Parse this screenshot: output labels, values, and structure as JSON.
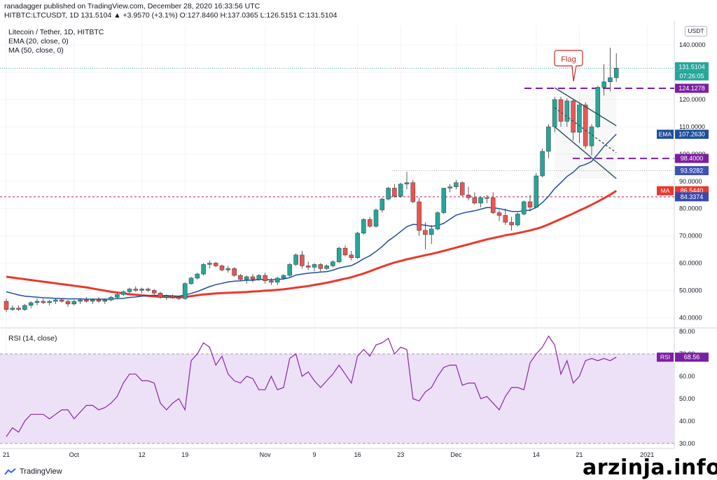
{
  "header": {
    "line1": "ranadagger published on TradingView.com, December 28, 2020 16:33:56 UTC",
    "line2": "HITBTC:LTCUSDT, 1D  131.5104  ▲ +3.9570 (+3.1%) O:127.8460 H:137.0365 L:126.5151 C:131.5104"
  },
  "legend": {
    "symbol": "Litecoin / Tether, 1D, HITBTC",
    "ema": "EMA (20, close, 0)",
    "ma": "MA (50, close, 0)",
    "rsi": "RSI (14, close)"
  },
  "currency_button": "USDT",
  "annotation": {
    "flag_label": "Flag"
  },
  "price_labels": {
    "last": "131.5104",
    "countdown": "07:26:05",
    "level_upper": "124.1278",
    "ema_tag": "EMA",
    "ema_value": "107.2630",
    "level_lower": "98.4000",
    "level_gray": "93.9282",
    "ma_tag": "MA",
    "ma_value": "86.5440",
    "level_red": "84.3374",
    "rsi_tag": "RSI",
    "rsi_value": "68.56"
  },
  "colors": {
    "up": "#26a69a",
    "down": "#ef5350",
    "ema": "#1e4f9c",
    "ma": "#e8392c",
    "dashed": "#7b1fa2",
    "rsi_line": "#8e24aa",
    "rsi_band": "#ede1f7"
  },
  "footer": {
    "brand": "TradingView",
    "watermark": "arzinja.info"
  },
  "chart_data": [
    {
      "type": "candlestick",
      "title": "Litecoin / Tether, 1D, HITBTC",
      "y_axis_ticks": [
        "40.0000",
        "50.0000",
        "60.0000",
        "70.0000",
        "80.0000",
        "90.0000",
        "100.0000",
        "110.0000",
        "120.0000",
        "130.0000",
        "140.0000"
      ],
      "ylim": [
        37,
        147
      ],
      "x_axis_ticks": [
        "21",
        "Oct",
        "12",
        "19",
        "Nov",
        "9",
        "16",
        "23",
        "Dec",
        "14",
        "21",
        "2021"
      ],
      "x_axis_tick_index": [
        0,
        11,
        22,
        29,
        42,
        50,
        57,
        64,
        73,
        86,
        93,
        104
      ],
      "ohlc": [
        [
          46,
          47,
          42,
          43
        ],
        [
          43,
          44.5,
          42.5,
          43.5
        ],
        [
          43.5,
          44.5,
          42.5,
          43
        ],
        [
          43,
          45,
          42.5,
          44.5
        ],
        [
          44.5,
          46,
          43.5,
          45.5
        ],
        [
          45.5,
          47,
          44.5,
          46
        ],
        [
          46,
          47,
          45,
          45.5
        ],
        [
          45.5,
          46.5,
          44.5,
          46
        ],
        [
          46,
          47,
          45,
          46.5
        ],
        [
          46.5,
          47,
          45.5,
          46
        ],
        [
          46,
          46.5,
          44,
          45
        ],
        [
          45,
          46.5,
          44.5,
          46
        ],
        [
          46,
          47,
          45,
          46.5
        ],
        [
          46.5,
          47.5,
          45.5,
          46
        ],
        [
          46,
          47,
          45,
          46.5
        ],
        [
          46.5,
          47.5,
          45.5,
          46
        ],
        [
          46,
          47,
          45,
          46.5
        ],
        [
          46.5,
          48,
          46,
          47.5
        ],
        [
          47.5,
          49,
          47,
          48.5
        ],
        [
          48.5,
          50,
          48,
          49.5
        ],
        [
          49.5,
          51,
          49,
          50.5
        ],
        [
          50.5,
          51.5,
          49.5,
          50
        ],
        [
          50,
          51,
          49,
          50.5
        ],
        [
          50.5,
          51,
          49.5,
          50
        ],
        [
          50,
          50.5,
          48.5,
          49
        ],
        [
          49,
          49.5,
          47,
          47.5
        ],
        [
          47.5,
          48.5,
          46.5,
          48
        ],
        [
          48,
          48.5,
          47,
          47.5
        ],
        [
          47.5,
          48,
          46.5,
          47
        ],
        [
          47,
          53,
          46.5,
          52.5
        ],
        [
          52.5,
          55,
          52,
          54.5
        ],
        [
          54.5,
          56.5,
          54,
          56
        ],
        [
          56,
          60,
          55.5,
          59.5
        ],
        [
          59.5,
          61,
          58,
          60
        ],
        [
          60,
          60.5,
          58.5,
          59
        ],
        [
          59,
          59.5,
          57,
          57.5
        ],
        [
          57.5,
          59,
          56.5,
          58
        ],
        [
          58,
          58.5,
          55,
          55.5
        ],
        [
          55.5,
          56,
          53.5,
          54
        ],
        [
          54,
          55.5,
          52.5,
          55
        ],
        [
          55,
          56,
          53,
          54
        ],
        [
          54,
          56,
          53.5,
          55.5
        ],
        [
          55.5,
          56.5,
          52.5,
          53.5
        ],
        [
          53.5,
          54.5,
          52,
          53
        ],
        [
          53,
          55,
          52,
          54.5
        ],
        [
          54.5,
          56,
          54,
          55.5
        ],
        [
          55.5,
          60,
          55,
          59.5
        ],
        [
          59.5,
          63.5,
          59,
          63
        ],
        [
          63,
          64.5,
          58,
          59
        ],
        [
          59,
          60.5,
          57.5,
          58.5
        ],
        [
          58.5,
          60,
          57,
          59.5
        ],
        [
          59.5,
          60,
          57,
          58
        ],
        [
          58,
          59.5,
          57.5,
          59
        ],
        [
          59,
          61,
          58.5,
          60.5
        ],
        [
          60.5,
          66,
          60,
          65.5
        ],
        [
          65.5,
          66.5,
          62.5,
          63
        ],
        [
          63,
          64.5,
          61,
          62
        ],
        [
          62,
          71.5,
          61.5,
          71
        ],
        [
          71,
          76.5,
          70.5,
          76
        ],
        [
          76,
          77,
          73,
          73.5
        ],
        [
          73.5,
          80,
          73,
          79.5
        ],
        [
          79.5,
          84,
          78.5,
          83.5
        ],
        [
          83.5,
          88,
          83,
          87.5
        ],
        [
          87.5,
          89,
          84,
          84.5
        ],
        [
          84.5,
          89.5,
          84,
          89
        ],
        [
          89,
          93.5,
          87,
          89.5
        ],
        [
          89.5,
          90.5,
          82,
          82.5
        ],
        [
          82.5,
          84,
          70,
          72
        ],
        [
          72,
          75,
          65,
          70.5
        ],
        [
          70.5,
          74,
          67,
          72.5
        ],
        [
          72.5,
          79,
          72,
          78.5
        ],
        [
          78.5,
          87.5,
          78,
          87.5
        ],
        [
          87.5,
          89,
          86,
          88
        ],
        [
          88,
          90.5,
          87,
          89.5
        ],
        [
          89.5,
          90,
          84.5,
          85
        ],
        [
          85,
          88,
          83,
          84
        ],
        [
          84,
          86,
          81.5,
          82
        ],
        [
          82,
          84.5,
          80.5,
          84
        ],
        [
          84,
          85,
          82,
          84
        ],
        [
          84,
          86,
          78,
          78.5
        ],
        [
          78.5,
          79.5,
          75.5,
          77.5
        ],
        [
          77.5,
          80,
          74,
          75
        ],
        [
          75,
          77,
          72,
          74
        ],
        [
          74,
          78.5,
          73.5,
          78
        ],
        [
          78,
          83,
          77.5,
          82.5
        ],
        [
          82.5,
          85,
          79,
          80.5
        ],
        [
          80.5,
          93,
          80.5,
          92
        ],
        [
          92,
          102,
          91.5,
          101
        ],
        [
          101,
          111,
          98.5,
          110
        ],
        [
          110,
          121,
          108,
          120
        ],
        [
          120,
          121,
          110,
          112
        ],
        [
          112,
          120.5,
          110,
          119.5
        ],
        [
          119.5,
          120,
          105,
          108
        ],
        [
          108,
          119,
          104,
          118
        ],
        [
          118,
          119,
          102,
          103
        ],
        [
          103,
          111,
          99.5,
          110
        ],
        [
          110,
          125,
          109.5,
          124.5
        ],
        [
          124.5,
          133,
          121.5,
          126.5
        ],
        [
          126.5,
          139,
          123,
          128
        ],
        [
          128,
          137,
          126.5,
          131.5
        ]
      ],
      "series": [
        {
          "name": "EMA (20, close, 0)",
          "last": 107.263
        },
        {
          "name": "MA (50, close, 0)",
          "last": 86.544
        }
      ],
      "ema": [
        49.5,
        48.9,
        48.3,
        47.9,
        47.7,
        47.5,
        47.3,
        47.2,
        47.1,
        47,
        46.9,
        46.9,
        46.9,
        46.8,
        46.8,
        46.8,
        46.8,
        46.8,
        47,
        47.1,
        47.4,
        47.6,
        47.9,
        48.1,
        48.2,
        48.1,
        48.1,
        48,
        47.9,
        48.3,
        48.9,
        49.6,
        50.5,
        51.4,
        52.1,
        52.6,
        53.1,
        53.4,
        53.5,
        53.7,
        53.7,
        54,
        54,
        53.9,
        54,
        54.2,
        54.7,
        55.6,
        56,
        56.3,
        56.5,
        56.7,
        56.9,
        57.4,
        58.2,
        58.7,
        59.1,
        60.2,
        61.6,
        62.7,
        64.3,
        66.1,
        68.2,
        69.8,
        71.6,
        73.4,
        74.2,
        74.1,
        73.9,
        73.5,
        73.8,
        74.6,
        76.1,
        77.6,
        78.3,
        78.8,
        79.2,
        79.8,
        80.4,
        80.3,
        80,
        79.5,
        79,
        78.9,
        79.2,
        79.4,
        80.4,
        82.2,
        84.5,
        87.4,
        89.5,
        91.8,
        93.3,
        95.5,
        96.2,
        97.3,
        100,
        102.8,
        105,
        107.3
      ],
      "ma": [
        55,
        54.7,
        54.4,
        54.1,
        53.8,
        53.5,
        53.2,
        52.9,
        52.6,
        52.3,
        52,
        51.7,
        51.4,
        51.1,
        50.7,
        50.3,
        49.9,
        49.5,
        49.2,
        48.9,
        48.6,
        48.4,
        48.2,
        48,
        47.8,
        47.7,
        47.6,
        47.5,
        47.5,
        47.6,
        47.9,
        48.2,
        48.5,
        48.7,
        48.9,
        49,
        49.1,
        49.2,
        49.3,
        49.4,
        49.6,
        49.7,
        49.9,
        50,
        50.2,
        50.4,
        50.7,
        51,
        51.3,
        51.6,
        52,
        52.4,
        52.8,
        53.3,
        53.8,
        54.3,
        54.8,
        55.5,
        56.2,
        57,
        57.9,
        58.7,
        59.5,
        60.2,
        60.8,
        61.4,
        61.9,
        62.4,
        62.9,
        63.4,
        63.9,
        64.5,
        65.1,
        65.7,
        66.3,
        66.9,
        67.5,
        68.1,
        68.7,
        69.2,
        69.7,
        70.2,
        70.6,
        71,
        71.5,
        72,
        72.6,
        73.3,
        74.2,
        75.2,
        76.2,
        77.2,
        78.2,
        79.3,
        80.3,
        81.4,
        82.6,
        83.8,
        85.1,
        86.5
      ],
      "horizontal_levels": [
        {
          "label": "124.1278",
          "value": 124.1278,
          "style": "dashed"
        },
        {
          "label": "98.4000",
          "value": 98.4,
          "style": "dashed"
        },
        {
          "label": "93.9282",
          "value": 93.9282,
          "style": "dotted"
        },
        {
          "label": "84.3374",
          "value": 84.3374,
          "style": "dotted"
        }
      ],
      "annotations": [
        "Flag"
      ]
    },
    {
      "type": "line",
      "title": "RSI (14, close)",
      "y_axis_ticks": [
        "30.00",
        "40.00",
        "50.00",
        "60.00",
        "70.00",
        "80.00"
      ],
      "ylim": [
        29,
        81
      ],
      "band": [
        30,
        70
      ],
      "last": 68.56,
      "values": [
        33,
        37,
        35,
        40,
        43,
        43,
        43,
        41,
        43,
        45,
        45,
        41,
        44,
        47,
        47,
        45,
        46,
        48,
        51,
        57,
        61,
        61,
        58,
        58,
        57,
        48,
        45,
        48,
        50,
        45,
        67,
        70,
        75,
        73,
        65,
        69,
        61,
        58,
        57,
        60,
        59,
        54,
        54,
        60,
        54,
        55,
        68,
        70,
        60,
        62,
        58,
        55,
        58,
        61,
        65,
        61,
        57,
        69,
        72,
        69,
        74,
        75,
        77,
        70,
        73,
        72,
        50,
        49,
        53,
        55,
        60,
        64,
        65,
        65,
        56,
        57,
        57,
        50,
        51,
        48,
        45,
        51,
        55,
        55,
        54,
        66,
        70,
        73,
        78,
        74,
        61,
        67,
        57,
        60,
        67,
        68,
        67,
        68,
        67,
        68.56
      ]
    }
  ]
}
